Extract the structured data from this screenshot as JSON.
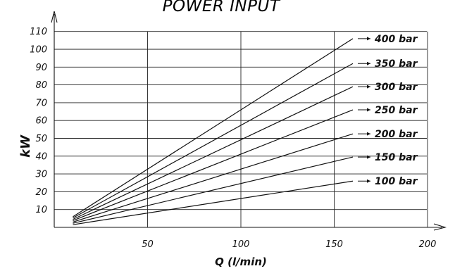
{
  "chart_data": {
    "type": "line",
    "title": "POWER INPUT",
    "xlabel": "Q (l/min)",
    "ylabel": "kW",
    "xlim": [
      0,
      200
    ],
    "ylim": [
      0,
      110
    ],
    "x_ticks": [
      "50",
      "100",
      "150",
      "200"
    ],
    "y_ticks": [
      "10",
      "20",
      "30",
      "40",
      "50",
      "60",
      "70",
      "80",
      "90",
      "100",
      "110"
    ],
    "grid": true,
    "series": [
      {
        "name": "400 bar",
        "x": [
          10,
          160
        ],
        "values": [
          6,
          106
        ]
      },
      {
        "name": "350 bar",
        "x": [
          10,
          160
        ],
        "values": [
          5.3,
          92
        ]
      },
      {
        "name": "300 bar",
        "x": [
          10,
          160
        ],
        "values": [
          4.5,
          79
        ]
      },
      {
        "name": "250 bar",
        "x": [
          10,
          160
        ],
        "values": [
          3.8,
          66
        ]
      },
      {
        "name": "200 bar",
        "x": [
          10,
          160
        ],
        "values": [
          3,
          52.5
        ]
      },
      {
        "name": "150 bar",
        "x": [
          10,
          160
        ],
        "values": [
          2.3,
          39.5
        ]
      },
      {
        "name": "100 bar",
        "x": [
          10,
          160
        ],
        "values": [
          1.5,
          26
        ]
      }
    ]
  }
}
